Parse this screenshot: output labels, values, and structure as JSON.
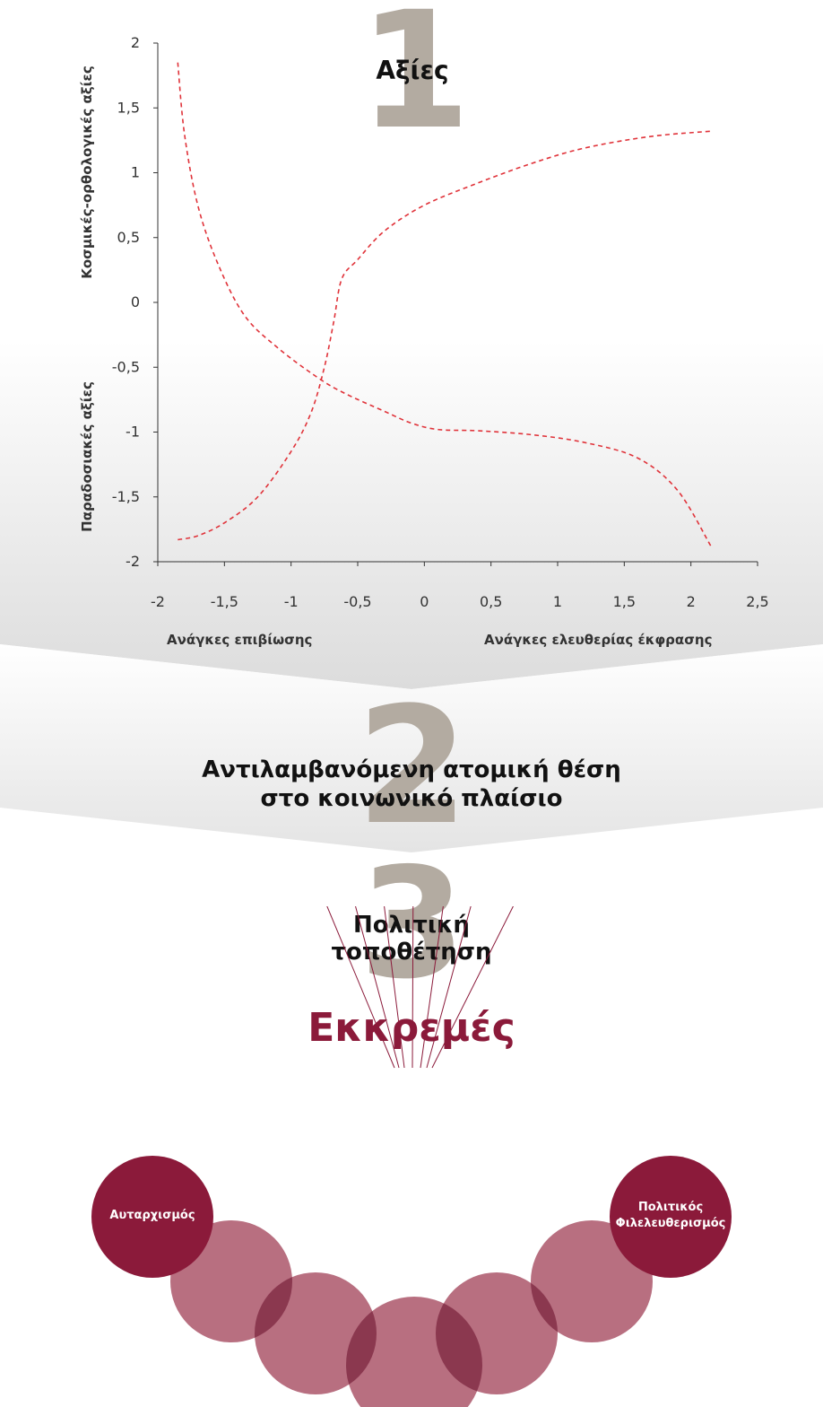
{
  "colors": {
    "accent": "#8b1a3a",
    "ball_light": "#b86f80",
    "number_gray": "#b3aba1",
    "curve": "#e0333a"
  },
  "step1": {
    "number": "1",
    "title": "Αξίες"
  },
  "step2": {
    "number": "2",
    "title_line1": "Αντιλαμβανόμενη ατομική θέση",
    "title_line2": "στο κοινωνικό πλαίσιο"
  },
  "step3": {
    "number": "3",
    "title_line1": "Πολιτική",
    "title_line2": "τοποθέτηση"
  },
  "chart_data": {
    "type": "line",
    "xlim": [
      -2,
      2.5
    ],
    "ylim": [
      -2,
      2
    ],
    "x_ticks": [
      "-2",
      "-1,5",
      "-1",
      "-0,5",
      "0",
      "0,5",
      "1",
      "1,5",
      "2",
      "2,5"
    ],
    "y_ticks": [
      "2",
      "1,5",
      "1",
      "0,5",
      "0",
      "-0,5",
      "-1",
      "-1,5",
      "-2"
    ],
    "ylabel_top": "Κοσμικές-ορθολογικές αξίες",
    "ylabel_bottom": "Παραδοσιακές αξίες",
    "xlabel_left": "Ανάγκες επιβίωσης",
    "xlabel_right": "Ανάγκες ελευθερίας έκφρασης",
    "grid": false,
    "series": [
      {
        "style": "dashed",
        "points": [
          [
            -1.85,
            1.85
          ],
          [
            -1.8,
            1.3
          ],
          [
            -1.7,
            0.75
          ],
          [
            -1.55,
            0.3
          ],
          [
            -1.35,
            -0.1
          ],
          [
            -1.1,
            -0.35
          ],
          [
            -0.8,
            -0.58
          ],
          [
            -0.6,
            -0.7
          ],
          [
            -0.3,
            -0.84
          ],
          [
            -0.1,
            -0.93
          ],
          [
            0.1,
            -0.98
          ],
          [
            0.4,
            -0.99
          ],
          [
            0.8,
            -1.02
          ],
          [
            1.2,
            -1.08
          ],
          [
            1.6,
            -1.2
          ],
          [
            1.9,
            -1.45
          ],
          [
            2.15,
            -1.88
          ]
        ]
      },
      {
        "style": "dashed",
        "points": [
          [
            -1.85,
            -1.83
          ],
          [
            -1.7,
            -1.8
          ],
          [
            -1.5,
            -1.7
          ],
          [
            -1.25,
            -1.5
          ],
          [
            -1.0,
            -1.15
          ],
          [
            -0.85,
            -0.85
          ],
          [
            -0.75,
            -0.5
          ],
          [
            -0.68,
            -0.15
          ],
          [
            -0.62,
            0.18
          ],
          [
            -0.5,
            0.33
          ],
          [
            -0.3,
            0.55
          ],
          [
            0.0,
            0.75
          ],
          [
            0.4,
            0.92
          ],
          [
            0.8,
            1.07
          ],
          [
            1.2,
            1.19
          ],
          [
            1.7,
            1.28
          ],
          [
            2.15,
            1.32
          ]
        ]
      }
    ]
  },
  "pendulum": {
    "title": "Εκκρεμές",
    "left_ball": "Αυταρχισμός",
    "right_ball_line1": "Πολιτικός",
    "right_ball_line2": "Φιλελευθερισμός"
  }
}
